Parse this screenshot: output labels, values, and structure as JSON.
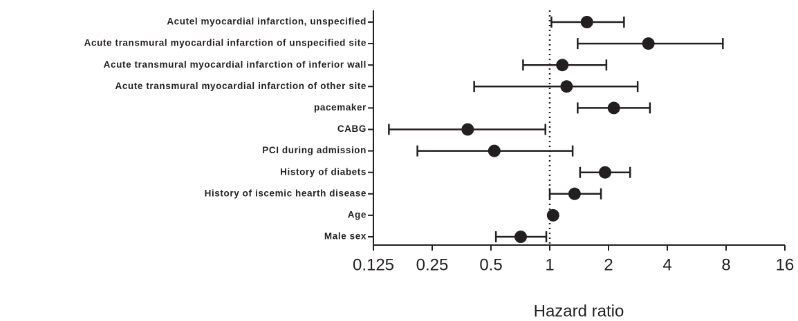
{
  "chart_data": {
    "type": "forest",
    "categories": [
      "Acutel myocardial infarction, unspecified",
      "Acute transmural myocardial infarction of unspecified site",
      "Acute transmural myocardial infarction of inferior wall",
      "Acute transmural myocardial infarction of other site",
      "pacemaker",
      "CABG",
      "PCI during admission",
      "History of diabets",
      "History of iscemic hearth disease",
      "Age",
      "Male sex"
    ],
    "values": [
      1.55,
      3.2,
      1.16,
      1.22,
      2.13,
      0.38,
      0.52,
      1.92,
      1.34,
      1.04,
      0.71
    ],
    "lower": [
      1.02,
      1.39,
      0.73,
      0.41,
      1.39,
      0.15,
      0.21,
      1.43,
      1.0,
      1.02,
      0.53
    ],
    "upper": [
      2.4,
      7.7,
      1.95,
      2.82,
      3.26,
      0.95,
      1.31,
      2.58,
      1.83,
      1.06,
      0.96
    ],
    "color": "#231f20",
    "xlabel": "Hazard ratio",
    "xlim": [
      0.125,
      16
    ],
    "xticks": [
      0.125,
      0.25,
      0.5,
      1,
      2,
      4,
      8,
      16
    ],
    "log_scale": true,
    "log_base": 2,
    "reference_line": 1
  }
}
